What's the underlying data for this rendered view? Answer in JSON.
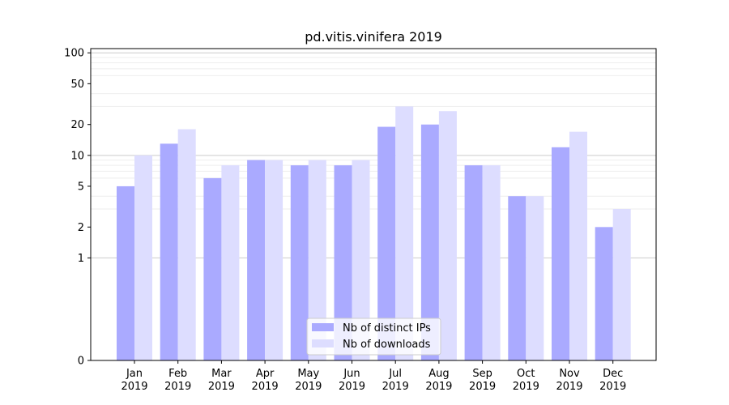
{
  "chart_data": {
    "type": "bar",
    "title": "pd.vitis.vinifera 2019",
    "xlabel": "",
    "ylabel": "",
    "yscale": "symlog",
    "yticks": [
      0,
      1,
      2,
      5,
      10,
      20,
      50,
      100
    ],
    "ylim": [
      0,
      110
    ],
    "categories": [
      [
        "Jan",
        "2019"
      ],
      [
        "Feb",
        "2019"
      ],
      [
        "Mar",
        "2019"
      ],
      [
        "Apr",
        "2019"
      ],
      [
        "May",
        "2019"
      ],
      [
        "Jun",
        "2019"
      ],
      [
        "Jul",
        "2019"
      ],
      [
        "Aug",
        "2019"
      ],
      [
        "Sep",
        "2019"
      ],
      [
        "Oct",
        "2019"
      ],
      [
        "Nov",
        "2019"
      ],
      [
        "Dec",
        "2019"
      ]
    ],
    "series": [
      {
        "name": "Nb of distinct IPs",
        "color": "#aaaaff",
        "values": [
          5,
          13,
          6,
          9,
          8,
          8,
          19,
          20,
          8,
          4,
          12,
          2
        ]
      },
      {
        "name": "Nb of downloads",
        "color": "#ddddff",
        "values": [
          10,
          18,
          8,
          9,
          9,
          9,
          30,
          27,
          8,
          4,
          17,
          3
        ]
      }
    ],
    "legend": "bottom-center",
    "grid": true
  }
}
